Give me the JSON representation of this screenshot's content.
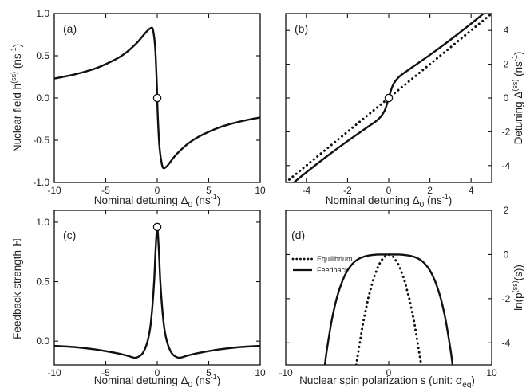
{
  "chart_data": [
    {
      "panel": "(a)",
      "type": "line",
      "xlabel": "Nominal detuning Δ0 (ns⁻¹)",
      "ylabel": "Nuclear field h(ss) (ns⁻¹)",
      "xlim": [
        -10,
        10
      ],
      "ylim": [
        -1.0,
        1.0
      ],
      "xticks": [
        "-10",
        "-5",
        "0",
        "5",
        "10"
      ],
      "yticks": [
        "-1.0",
        "-0.5",
        "0.0",
        "0.5",
        "1.0"
      ],
      "series": [
        {
          "style": "solid",
          "x": [
            -10,
            -8,
            -6,
            -4,
            -3,
            -2,
            -1.5,
            -1,
            -0.6,
            -0.4,
            -0.2,
            -0.05,
            0,
            0.05,
            0.2,
            0.4,
            0.6,
            1,
            1.5,
            2,
            3,
            4,
            6,
            8,
            10
          ],
          "y": [
            0.23,
            0.28,
            0.35,
            0.46,
            0.54,
            0.65,
            0.72,
            0.79,
            0.83,
            0.8,
            0.6,
            0.2,
            0.0,
            -0.2,
            -0.55,
            -0.75,
            -0.83,
            -0.8,
            -0.72,
            -0.65,
            -0.54,
            -0.46,
            -0.35,
            -0.28,
            -0.23
          ]
        }
      ],
      "markers": [
        {
          "x": 0,
          "y": 0.0,
          "style": "open-circle"
        }
      ]
    },
    {
      "panel": "(b)",
      "type": "line",
      "xlabel": "Nominal detuning Δ0 (ns⁻¹)",
      "ylabel": "Detuning Δ(ss) (ns⁻¹)",
      "xlim": [
        -5,
        5
      ],
      "ylim": [
        -5,
        5
      ],
      "xticks": [
        "-4",
        "-2",
        "0",
        "2",
        "4"
      ],
      "yticks": [
        "-4",
        "-2",
        "0",
        "2",
        "4"
      ],
      "y_axis_side": "right",
      "series": [
        {
          "style": "solid",
          "x": [
            -5,
            -4,
            -3,
            -2,
            -1,
            -0.5,
            -0.2,
            0,
            0.2,
            0.5,
            1,
            2,
            3,
            4,
            5
          ],
          "y": [
            -5.4,
            -4.4,
            -3.45,
            -2.55,
            -1.7,
            -1.25,
            -0.75,
            0,
            0.75,
            1.25,
            1.7,
            2.55,
            3.45,
            4.4,
            5.4
          ]
        },
        {
          "style": "dotted",
          "x": [
            -5,
            5
          ],
          "y": [
            -5,
            5
          ]
        }
      ],
      "markers": [
        {
          "x": 0,
          "y": 0,
          "style": "open-circle"
        }
      ]
    },
    {
      "panel": "(c)",
      "type": "line",
      "xlabel": "Nominal detuning Δ0 (ns⁻¹)",
      "ylabel": "Feedback strength ℍ'",
      "xlim": [
        -10,
        10
      ],
      "ylim": [
        -0.2,
        1.1
      ],
      "xticks": [
        "-10",
        "-5",
        "0",
        "5",
        "10"
      ],
      "yticks": [
        "0.0",
        "0.5",
        "1.0"
      ],
      "series": [
        {
          "style": "solid",
          "x": [
            -10,
            -8,
            -6,
            -4,
            -3,
            -2.2,
            -1.8,
            -1.4,
            -1,
            -0.7,
            -0.5,
            -0.3,
            -0.15,
            0,
            0.15,
            0.3,
            0.5,
            0.7,
            1,
            1.4,
            1.8,
            2.2,
            3,
            4,
            6,
            8,
            10
          ],
          "y": [
            -0.04,
            -0.05,
            -0.07,
            -0.1,
            -0.12,
            -0.14,
            -0.13,
            -0.1,
            -0.02,
            0.1,
            0.26,
            0.5,
            0.78,
            0.95,
            0.78,
            0.5,
            0.26,
            0.1,
            -0.02,
            -0.1,
            -0.13,
            -0.14,
            -0.12,
            -0.1,
            -0.07,
            -0.05,
            -0.04
          ]
        }
      ],
      "markers": [
        {
          "x": 0,
          "y": 0.96,
          "style": "open-circle"
        }
      ]
    },
    {
      "panel": "(d)",
      "type": "line",
      "xlabel": "Nuclear spin polarization s (unit: σeq)",
      "ylabel": "ln(p(ss)(s))",
      "xlim": [
        -10,
        10
      ],
      "ylim": [
        -5,
        2
      ],
      "xticks": [
        "-10",
        "0",
        "10"
      ],
      "yticks": [
        "-4",
        "-2",
        "0",
        "2"
      ],
      "y_axis_side": "right",
      "legend": {
        "placement": "top-left",
        "entries": [
          "Equilibrium",
          "Feedback"
        ]
      },
      "series": [
        {
          "name": "Equilibrium",
          "style": "dotted",
          "x": [
            -3.16,
            -2.5,
            -2,
            -1.5,
            -1,
            -0.5,
            0,
            0.5,
            1,
            1.5,
            2,
            2.5,
            3.16
          ],
          "y": [
            -5,
            -3.12,
            -2,
            -1.12,
            -0.5,
            -0.12,
            0,
            -0.12,
            -0.5,
            -1.12,
            -2,
            -3.12,
            -5
          ]
        },
        {
          "name": "Feedback",
          "style": "solid",
          "x": [
            -6.2,
            -6,
            -5.5,
            -5,
            -4.5,
            -4,
            -3.5,
            -3,
            -2.5,
            -2,
            -1.5,
            -1,
            0,
            1,
            1.5,
            2,
            2.5,
            3,
            3.5,
            4,
            4.5,
            5,
            5.5,
            6,
            6.2
          ],
          "y": [
            -5,
            -4.3,
            -2.9,
            -1.9,
            -1.2,
            -0.72,
            -0.41,
            -0.22,
            -0.11,
            -0.05,
            -0.02,
            0,
            0,
            0,
            -0.02,
            -0.05,
            -0.11,
            -0.22,
            -0.41,
            -0.72,
            -1.2,
            -1.9,
            -2.9,
            -4.3,
            -5
          ]
        }
      ]
    }
  ]
}
